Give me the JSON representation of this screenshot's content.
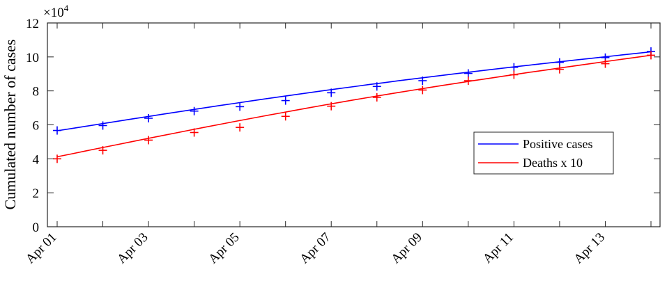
{
  "chart_data": {
    "type": "line",
    "ylabel": "Cumulated number of cases",
    "y_multiplier_label": "×10",
    "y_multiplier_exponent": "4",
    "ylim": [
      0,
      12
    ],
    "yticks": [
      0,
      2,
      4,
      6,
      8,
      10,
      12
    ],
    "xticks": [
      "Apr 01",
      "Apr 03",
      "Apr 05",
      "Apr 07",
      "Apr 09",
      "Apr 11",
      "Apr 13"
    ],
    "x_days": [
      1,
      2,
      3,
      4,
      5,
      6,
      7,
      8,
      9,
      10,
      11,
      12,
      13,
      14
    ],
    "series": [
      {
        "name": "Positive cases",
        "color": "#0000ff",
        "observed": [
          5.67,
          5.96,
          6.39,
          6.81,
          7.07,
          7.43,
          7.89,
          8.26,
          8.6,
          9.03,
          9.39,
          9.68,
          9.96,
          10.32
        ],
        "fit_start": 5.65,
        "fit_end": 10.3
      },
      {
        "name": "Deaths x 10",
        "color": "#ff0000",
        "observed": [
          4.0,
          4.5,
          5.1,
          5.55,
          5.85,
          6.5,
          7.1,
          7.62,
          8.05,
          8.6,
          8.95,
          9.27,
          9.6,
          10.1
        ],
        "fit_start": 4.12,
        "fit_end": 10.1
      }
    ],
    "legend_position": "right",
    "grid": false
  }
}
